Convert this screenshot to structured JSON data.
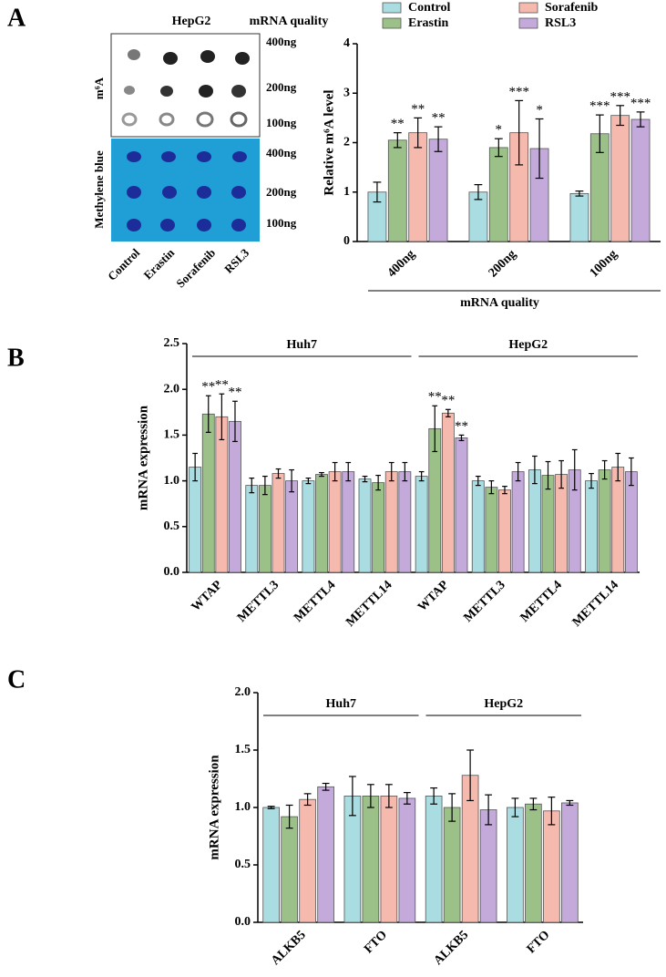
{
  "blot": {
    "cell_line": "HepG2",
    "quality_title": "mRNA quality",
    "top_label": "m⁶A",
    "bottom_label": "Methylene blue",
    "amounts": [
      "400ng",
      "200ng",
      "100ng"
    ],
    "lanes": [
      "Control",
      "Erastin",
      "Sorafenib",
      "RSL3"
    ]
  },
  "chart_data": [
    {
      "type": "bar",
      "panel": "A",
      "y_label": "Relative m⁶A level",
      "x_label": "mRNA quality",
      "categories": [
        "400ng",
        "200ng",
        "100ng"
      ],
      "ylim": [
        0,
        4
      ],
      "yticks": [
        0,
        1,
        2,
        3,
        4
      ],
      "legend": "top",
      "series": [
        {
          "name": "Control",
          "color": "#a9dde2",
          "values": [
            1.0,
            1.0,
            0.97
          ],
          "errors": [
            0.2,
            0.15,
            0.05
          ],
          "significance": [
            null,
            null,
            null
          ]
        },
        {
          "name": "Erastin",
          "color": "#9cc188",
          "values": [
            2.05,
            1.9,
            2.18
          ],
          "errors": [
            0.15,
            0.18,
            0.38
          ],
          "significance": [
            "**",
            "*",
            "***"
          ]
        },
        {
          "name": "Sorafenib",
          "color": "#f5b9ae",
          "values": [
            2.2,
            2.2,
            2.55
          ],
          "errors": [
            0.3,
            0.65,
            0.2
          ],
          "significance": [
            "**",
            "***",
            "***"
          ]
        },
        {
          "name": "RSL3",
          "color": "#c4aada",
          "values": [
            2.07,
            1.88,
            2.47
          ],
          "errors": [
            0.25,
            0.6,
            0.15
          ],
          "significance": [
            "**",
            "*",
            "***"
          ]
        }
      ]
    },
    {
      "type": "bar",
      "panel": "B",
      "y_label": "mRNA expression",
      "categories": [
        "WTAP",
        "METTL3",
        "METTL4",
        "METTL14",
        "WTAP",
        "METTL3",
        "METTL4",
        "METTL14"
      ],
      "groups": [
        "Huh7",
        "HepG2"
      ],
      "ylim": [
        0,
        2.5
      ],
      "yticks": [
        {
          "value": 0,
          "label": "0.0"
        },
        0.5,
        {
          "value": 1,
          "label": "1.0"
        },
        1.5,
        {
          "value": 2,
          "label": "2.0"
        },
        2.5
      ],
      "series": [
        {
          "name": "Control",
          "color": "#a9dde2",
          "values": [
            1.15,
            0.95,
            1.0,
            1.02,
            1.05,
            1.0,
            1.12,
            1.0
          ],
          "errors": [
            0.15,
            0.08,
            0.03,
            0.03,
            0.05,
            0.05,
            0.15,
            0.08
          ],
          "significance": [
            null,
            null,
            null,
            null,
            null,
            null,
            null,
            null
          ]
        },
        {
          "name": "Erastin",
          "color": "#9cc188",
          "values": [
            1.73,
            0.95,
            1.07,
            0.98,
            1.57,
            0.93,
            1.06,
            1.12
          ],
          "errors": [
            0.2,
            0.1,
            0.02,
            0.08,
            0.25,
            0.07,
            0.15,
            0.1
          ],
          "significance": [
            "**",
            null,
            null,
            null,
            "**",
            null,
            null,
            null
          ]
        },
        {
          "name": "Sorafenib",
          "color": "#f5b9ae",
          "values": [
            1.7,
            1.08,
            1.1,
            1.1,
            1.74,
            0.9,
            1.07,
            1.15
          ],
          "errors": [
            0.25,
            0.05,
            0.1,
            0.1,
            0.04,
            0.04,
            0.15,
            0.15
          ],
          "significance": [
            "**",
            null,
            null,
            null,
            "**",
            null,
            null,
            null
          ]
        },
        {
          "name": "RSL3",
          "color": "#c4aada",
          "values": [
            1.65,
            1.0,
            1.1,
            1.1,
            1.47,
            1.1,
            1.12,
            1.1
          ],
          "errors": [
            0.22,
            0.12,
            0.1,
            0.1,
            0.03,
            0.1,
            0.22,
            0.15
          ],
          "significance": [
            "**",
            null,
            null,
            null,
            "**",
            null,
            null,
            null
          ]
        }
      ]
    },
    {
      "type": "bar",
      "panel": "C",
      "y_label": "mRNA expression",
      "categories": [
        "ALKB5",
        "FTO",
        "ALKB5",
        "FTO"
      ],
      "groups": [
        "Huh7",
        "HepG2"
      ],
      "ylim": [
        0,
        2
      ],
      "yticks": [
        {
          "value": 0,
          "label": "0.0"
        },
        0.5,
        {
          "value": 1,
          "label": "1.0"
        },
        1.5,
        {
          "value": 2,
          "label": "2.0"
        }
      ],
      "series": [
        {
          "name": "Control",
          "color": "#a9dde2",
          "values": [
            1.0,
            1.1,
            1.1,
            1.0
          ],
          "errors": [
            0.01,
            0.17,
            0.07,
            0.08
          ]
        },
        {
          "name": "Erastin",
          "color": "#9cc188",
          "values": [
            0.92,
            1.1,
            1.0,
            1.03
          ],
          "errors": [
            0.1,
            0.1,
            0.12,
            0.05
          ]
        },
        {
          "name": "Sorafenib",
          "color": "#f5b9ae",
          "values": [
            1.07,
            1.1,
            1.28,
            0.97
          ],
          "errors": [
            0.05,
            0.1,
            0.22,
            0.12
          ]
        },
        {
          "name": "RSL3",
          "color": "#c4aada",
          "values": [
            1.18,
            1.08,
            0.98,
            1.04
          ],
          "errors": [
            0.03,
            0.05,
            0.13,
            0.02
          ]
        }
      ]
    }
  ]
}
